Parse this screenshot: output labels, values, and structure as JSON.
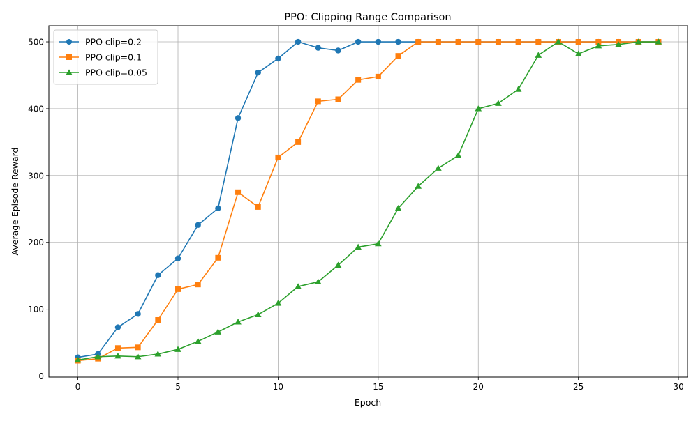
{
  "chart_data": {
    "type": "line",
    "title": "PPO: Clipping Range Comparison",
    "xlabel": "Epoch",
    "ylabel": "Average Episode Reward",
    "xlim": [
      -1.45,
      30.45
    ],
    "ylim": [
      -1.5,
      524
    ],
    "xticks": [
      0,
      5,
      10,
      15,
      20,
      25,
      30
    ],
    "yticks": [
      0,
      100,
      200,
      300,
      400,
      500
    ],
    "grid": true,
    "legend_position": "top-left",
    "x": [
      0,
      1,
      2,
      3,
      4,
      5,
      6,
      7,
      8,
      9,
      10,
      11,
      12,
      13,
      14,
      15,
      16,
      17,
      18,
      19,
      20,
      21,
      22,
      23,
      24,
      25,
      26,
      27,
      28,
      29
    ],
    "series": [
      {
        "name": "PPO clip=0.2",
        "color": "#1f77b4",
        "marker": "circle",
        "values": [
          28,
          33,
          73,
          93,
          151,
          176,
          226,
          251,
          386,
          454,
          475,
          500,
          491,
          487,
          500,
          500,
          500,
          500,
          500,
          500,
          500,
          500,
          500,
          500,
          500,
          500,
          500,
          500,
          500,
          500
        ]
      },
      {
        "name": "PPO clip=0.1",
        "color": "#ff7f0e",
        "marker": "square",
        "values": [
          23,
          26,
          42,
          43,
          84,
          130,
          137,
          177,
          275,
          253,
          327,
          350,
          411,
          414,
          443,
          448,
          479,
          500,
          500,
          500,
          500,
          500,
          500,
          500,
          500,
          500,
          500,
          500,
          500,
          500
        ]
      },
      {
        "name": "PPO clip=0.05",
        "color": "#2ca02c",
        "marker": "triangle",
        "values": [
          24,
          29,
          30,
          29,
          33,
          40,
          52,
          66,
          81,
          92,
          109,
          134,
          141,
          166,
          193,
          198,
          251,
          284,
          311,
          330,
          400,
          408,
          429,
          480,
          500,
          482,
          494,
          496,
          500,
          500
        ]
      }
    ]
  }
}
